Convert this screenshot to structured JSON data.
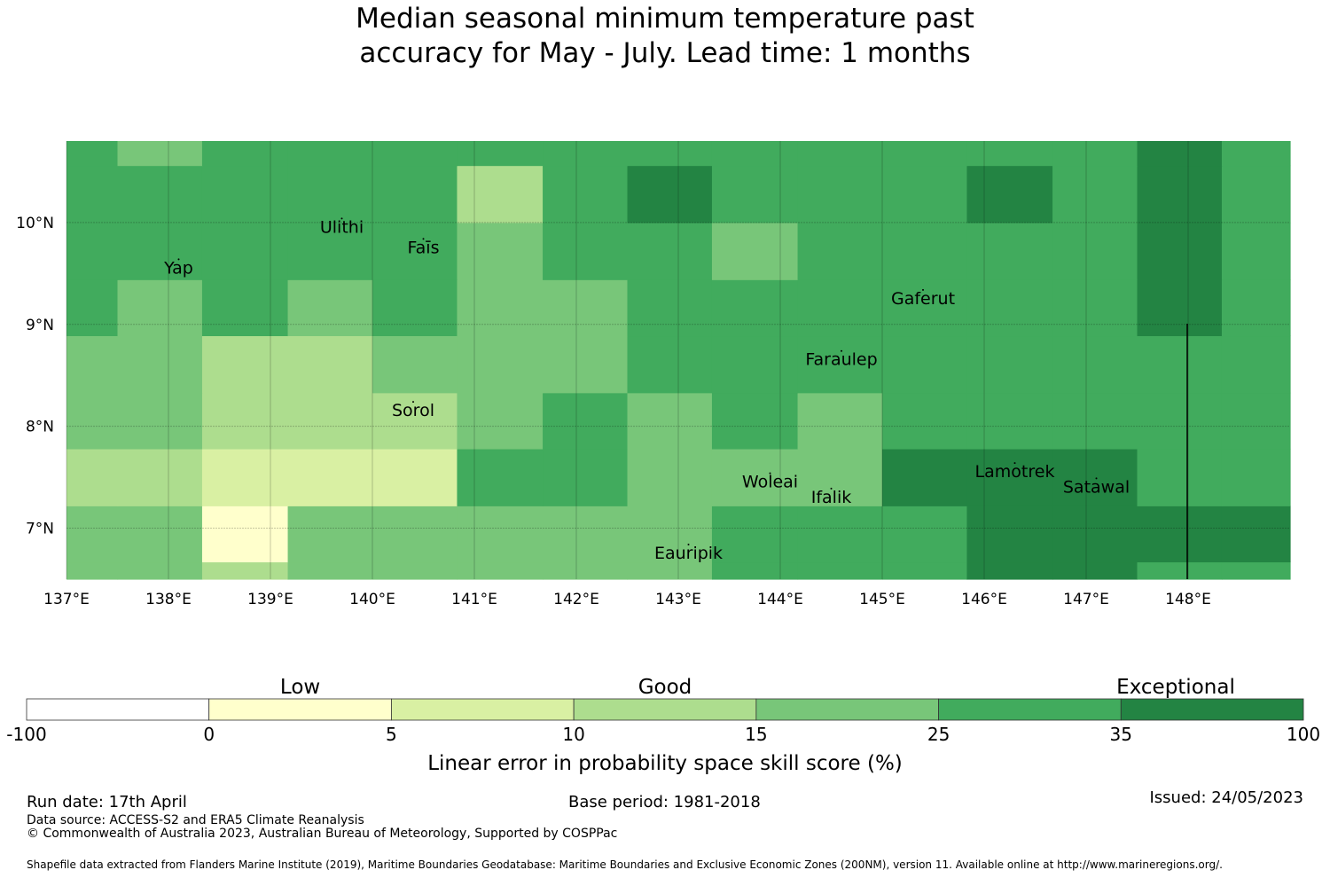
{
  "title": {
    "line1": "Median seasonal minimum temperature past",
    "line2": "accuracy for May - July. Lead time: 1 months"
  },
  "map": {
    "lon_range": [
      137,
      149
    ],
    "lat_range": [
      6.5,
      10.8
    ],
    "lon_ticks": [
      137,
      138,
      139,
      140,
      141,
      142,
      143,
      144,
      145,
      146,
      147,
      148
    ],
    "lon_tick_labels": [
      "137°E",
      "138°E",
      "139°E",
      "140°E",
      "141°E",
      "142°E",
      "143°E",
      "144°E",
      "145°E",
      "146°E",
      "147°E",
      "148°E"
    ],
    "lat_ticks": [
      7,
      8,
      9,
      10
    ],
    "lat_tick_labels": [
      "7°N",
      "8°N",
      "9°N",
      "10°N"
    ],
    "gridlines": true,
    "places": [
      {
        "name": "Yap",
        "lon": 138.1,
        "lat": 9.5
      },
      {
        "name": "Ulithi",
        "lon": 139.7,
        "lat": 9.9
      },
      {
        "name": "Faīs",
        "lon": 140.5,
        "lat": 9.7
      },
      {
        "name": "Sorol",
        "lon": 140.4,
        "lat": 8.1
      },
      {
        "name": "Gaferut",
        "lon": 145.4,
        "lat": 9.2
      },
      {
        "name": "Faraulep",
        "lon": 144.6,
        "lat": 8.6
      },
      {
        "name": "Woleai",
        "lon": 143.9,
        "lat": 7.4
      },
      {
        "name": "Ifalik",
        "lon": 144.5,
        "lat": 7.25
      },
      {
        "name": "Eauripik",
        "lon": 143.1,
        "lat": 6.7
      },
      {
        "name": "Lamotrek",
        "lon": 146.3,
        "lat": 7.5
      },
      {
        "name": "Satawal",
        "lon": 147.1,
        "lat": 7.35
      }
    ]
  },
  "chart_data": {
    "type": "heatmap",
    "title": "Median seasonal minimum temperature past accuracy for May - July. Lead time: 1 months",
    "xlabel": "",
    "ylabel": "",
    "x_edges": [
      137.0,
      137.5,
      138.33,
      139.17,
      140.0,
      140.83,
      141.67,
      142.5,
      143.33,
      144.17,
      145.0,
      145.83,
      146.67,
      147.5,
      148.33,
      149.0
    ],
    "y_edges": [
      6.5,
      6.67,
      7.22,
      7.78,
      8.33,
      8.89,
      9.44,
      10.0,
      10.56,
      10.8
    ],
    "values_note_units": "LEPS skill score (%) category lower bound",
    "values": [
      [
        15,
        15,
        10,
        15,
        15,
        15,
        15,
        15,
        25,
        25,
        25,
        35,
        35,
        25,
        25
      ],
      [
        15,
        15,
        0,
        15,
        15,
        15,
        15,
        15,
        25,
        25,
        25,
        35,
        35,
        35,
        35
      ],
      [
        10,
        10,
        5,
        5,
        5,
        25,
        25,
        15,
        15,
        15,
        35,
        35,
        35,
        25,
        25
      ],
      [
        15,
        15,
        10,
        10,
        10,
        15,
        25,
        15,
        25,
        15,
        25,
        25,
        25,
        25,
        25
      ],
      [
        15,
        15,
        10,
        10,
        15,
        15,
        15,
        25,
        25,
        25,
        25,
        25,
        25,
        25,
        25
      ],
      [
        25,
        15,
        25,
        15,
        25,
        15,
        15,
        25,
        25,
        25,
        25,
        25,
        25,
        35,
        25
      ],
      [
        25,
        25,
        25,
        25,
        25,
        15,
        25,
        25,
        15,
        25,
        25,
        25,
        25,
        35,
        25
      ],
      [
        25,
        25,
        25,
        25,
        25,
        10,
        25,
        35,
        25,
        25,
        25,
        35,
        25,
        35,
        25
      ],
      [
        25,
        15,
        25,
        25,
        25,
        25,
        25,
        25,
        25,
        25,
        25,
        25,
        25,
        35,
        25
      ]
    ],
    "colorbar": {
      "label": "Linear error in probability space skill score (%)",
      "boundaries": [
        "-100",
        "0",
        "5",
        "10",
        "15",
        "25",
        "35",
        "100"
      ],
      "colors": [
        "#ffffff",
        "#ffffcc",
        "#d9f0a3",
        "#addd8e",
        "#78c679",
        "#41ab5d",
        "#238443"
      ],
      "category_labels": [
        "Low",
        "Good",
        "Exceptional"
      ]
    }
  },
  "footer": {
    "run_date": "Run date: 17th April",
    "base_period": "Base period: 1981-2018",
    "issued": "Issued: 24/05/2023",
    "data_source": "Data source: ACCESS-S2 and ERA5 Climate Reanalysis",
    "copyright": "© Commonwealth of Australia 2023, Australian Bureau of Meteorology, Supported by COSPPac",
    "shapefile": "Shapefile data extracted from Flanders Marine Institute (2019), Maritime Boundaries Geodatabase: Maritime Boundaries and Exclusive Economic Zones (200NM), version 11. Available online at http://www.marineregions.org/."
  }
}
